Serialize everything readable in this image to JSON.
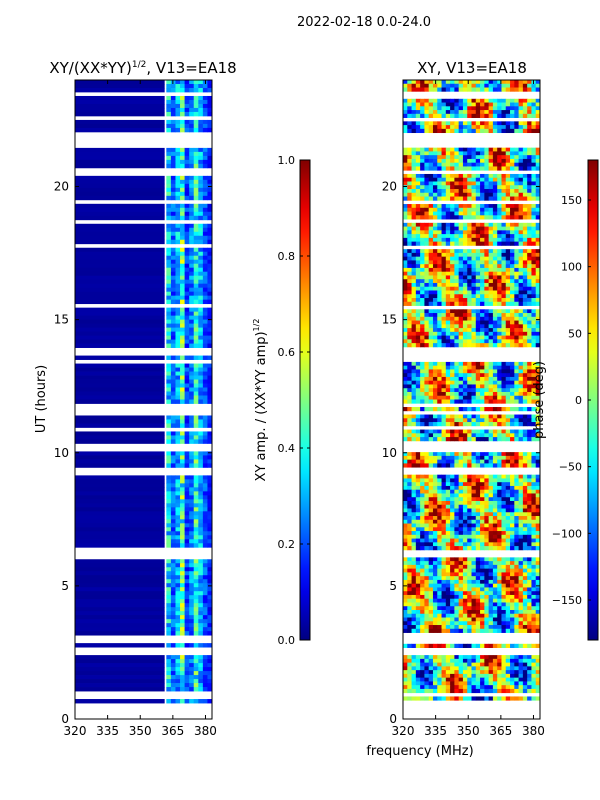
{
  "figure": {
    "suptitle": "2022-02-18 0.0-24.0",
    "xlabel_shared": "frequency (MHz)"
  },
  "chart_data": [
    {
      "type": "heatmap",
      "id": "amplitude",
      "title_text": "XY/(XX*YY)",
      "title_exponent": "1/2",
      "title_suffix": ", V13=EA18",
      "ylabel": "UT (hours)",
      "xlim": [
        320,
        383
      ],
      "ylim": [
        0,
        24
      ],
      "xticks": [
        320,
        335,
        350,
        365,
        380
      ],
      "yticks": [
        0,
        5,
        10,
        15,
        20
      ],
      "low_band_end": 361,
      "high_band_start": 362,
      "low_band_value": 0.02,
      "channel_levels": [
        0.35,
        0.22,
        0.3,
        0.45,
        0.18,
        0.25,
        0.4,
        0.3,
        0.2,
        0.15
      ],
      "colorbar": {
        "label_text": "XY amp. / (XX*YY amp)",
        "label_exponent": "1/2",
        "range": [
          0.0,
          1.0
        ],
        "ticks": [
          "0.0",
          "0.2",
          "0.4",
          "0.6",
          "0.8",
          "1.0"
        ],
        "colormap": "jet"
      }
    },
    {
      "type": "heatmap",
      "id": "phase",
      "title": "XY, V13=EA18",
      "xlim": [
        320,
        383
      ],
      "ylim": [
        0,
        24
      ],
      "xticks": [
        320,
        335,
        350,
        365,
        380
      ],
      "yticks": [
        0,
        5,
        10,
        15,
        20
      ],
      "colorbar": {
        "label": "phase (deg)",
        "range": [
          -180,
          180
        ],
        "ticks": [
          "150",
          "100",
          "50",
          "0",
          "−50",
          "−100",
          "−150"
        ],
        "tick_values": [
          150,
          100,
          50,
          0,
          -50,
          -100,
          -150
        ],
        "colormap": "jet"
      }
    }
  ],
  "flagged_ut_hours": [
    0.55,
    0.9,
    2.55,
    2.95,
    3.1,
    6.1,
    6.3,
    9.3,
    10.1,
    10.3,
    10.9,
    11.55,
    11.75,
    13.45,
    13.7,
    13.85,
    15.5,
    17.75,
    18.7,
    19.4,
    20.55,
    21.55,
    21.75,
    21.95,
    22.55,
    23.45
  ]
}
